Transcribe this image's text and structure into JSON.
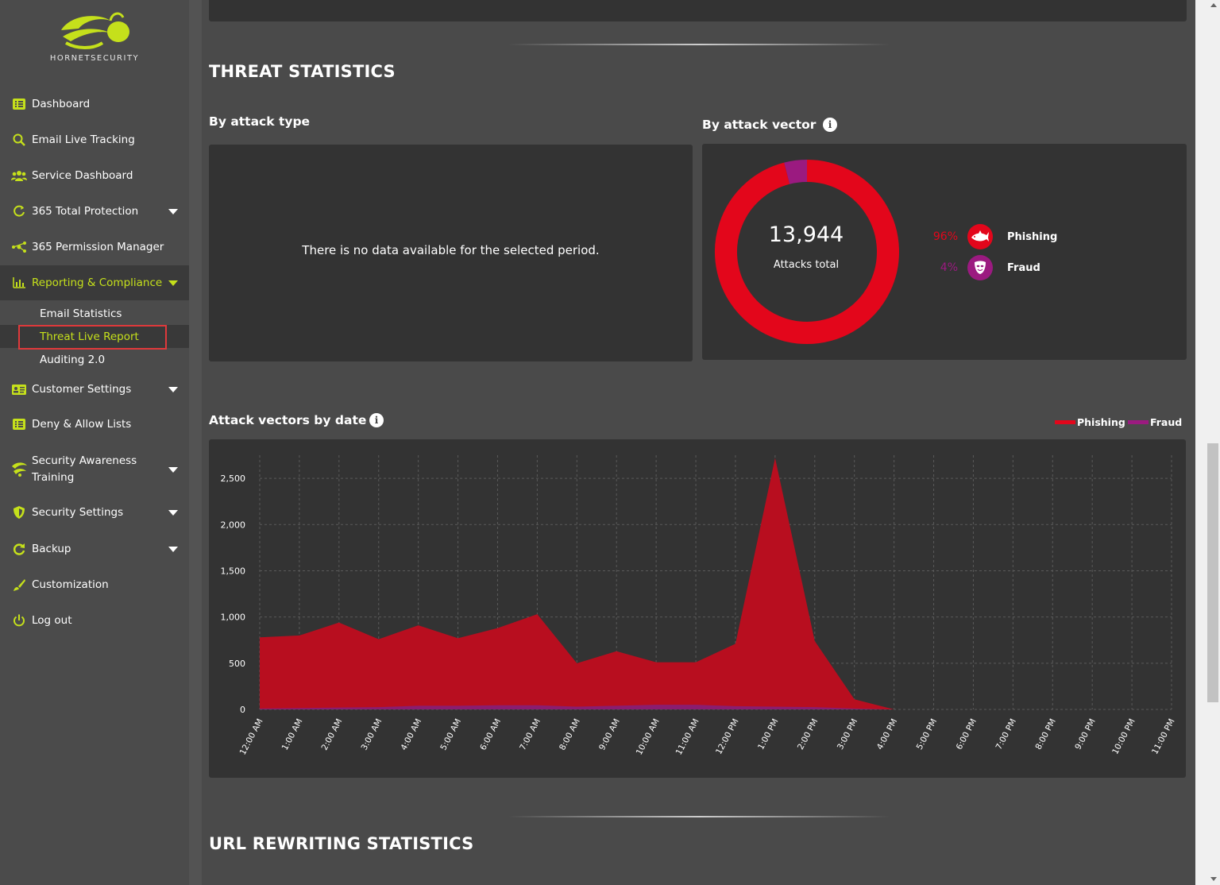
{
  "brand": {
    "name": "HORNETSECURITY",
    "accent": "#c5e01b",
    "danger": "#e3061b",
    "fraud": "#9b1a80"
  },
  "sidebar": {
    "items": [
      {
        "label": "Dashboard",
        "icon": "list-icon"
      },
      {
        "label": "Email Live Tracking",
        "icon": "magnifier-icon"
      },
      {
        "label": "Service Dashboard",
        "icon": "users-icon"
      },
      {
        "label": "365 Total Protection",
        "icon": "circle-arrow-icon"
      },
      {
        "label": "365 Permission Manager",
        "icon": "nodes-icon"
      },
      {
        "label": "Reporting & Compliance",
        "icon": "bar-chart-icon"
      },
      {
        "label": "Customer Settings",
        "icon": "id-card-icon"
      },
      {
        "label": "Deny & Allow Lists",
        "icon": "list-icon"
      },
      {
        "label": "Security Awareness Training",
        "icon": "hornet-icon"
      },
      {
        "label": "Security Settings",
        "icon": "shield-icon"
      },
      {
        "label": "Backup",
        "icon": "refresh-icon"
      },
      {
        "label": "Customization",
        "icon": "brush-icon"
      },
      {
        "label": "Log out",
        "icon": "power-icon"
      }
    ],
    "sub_items": [
      {
        "label": "Email Statistics"
      },
      {
        "label": "Threat Live Report"
      },
      {
        "label": "Auditing 2.0"
      }
    ]
  },
  "threat": {
    "title": "THREAT STATISTICS",
    "by_attack_type": "By attack type",
    "no_data": "There is no data available for the selected period.",
    "by_attack_vector": "By attack vector",
    "total": "13,944",
    "total_label": "Attacks total",
    "vectors": [
      {
        "pct": "96%",
        "name": "Phishing",
        "icon": "shark-icon",
        "value": 96
      },
      {
        "pct": "4%",
        "name": "Fraud",
        "icon": "mask-icon",
        "value": 4
      }
    ]
  },
  "timeline": {
    "title": "Attack vectors by date",
    "legend": [
      "Phishing",
      "Fraud"
    ]
  },
  "url": {
    "title": "URL REWRITING STATISTICS"
  },
  "chart_data": {
    "type": "area",
    "title": "Attack vectors by date",
    "x": [
      "12:00 AM",
      "1:00 AM",
      "2:00 AM",
      "3:00 AM",
      "4:00 AM",
      "5:00 AM",
      "6:00 AM",
      "7:00 AM",
      "8:00 AM",
      "9:00 AM",
      "10:00 AM",
      "11:00 AM",
      "12:00 PM",
      "1:00 PM",
      "2:00 PM",
      "3:00 PM",
      "4:00 PM",
      "5:00 PM",
      "6:00 PM",
      "7:00 PM",
      "8:00 PM",
      "9:00 PM",
      "10:00 PM",
      "11:00 PM"
    ],
    "series": [
      {
        "name": "Phishing",
        "color": "#b80e1f",
        "values": [
          780,
          800,
          940,
          760,
          910,
          770,
          880,
          1030,
          500,
          630,
          510,
          510,
          710,
          2720,
          740,
          110,
          0,
          0,
          0,
          0,
          0,
          0,
          0,
          0
        ]
      },
      {
        "name": "Fraud",
        "color": "#8a1d70",
        "values": [
          10,
          15,
          20,
          25,
          40,
          40,
          45,
          45,
          30,
          40,
          50,
          50,
          35,
          30,
          25,
          10,
          0,
          0,
          0,
          0,
          0,
          0,
          0,
          0
        ]
      }
    ],
    "yticks": [
      "0",
      "500",
      "1,000",
      "1,500",
      "2,000",
      "2,500"
    ],
    "ylim": [
      0,
      2750
    ],
    "grid": true,
    "legend": "top-right"
  }
}
